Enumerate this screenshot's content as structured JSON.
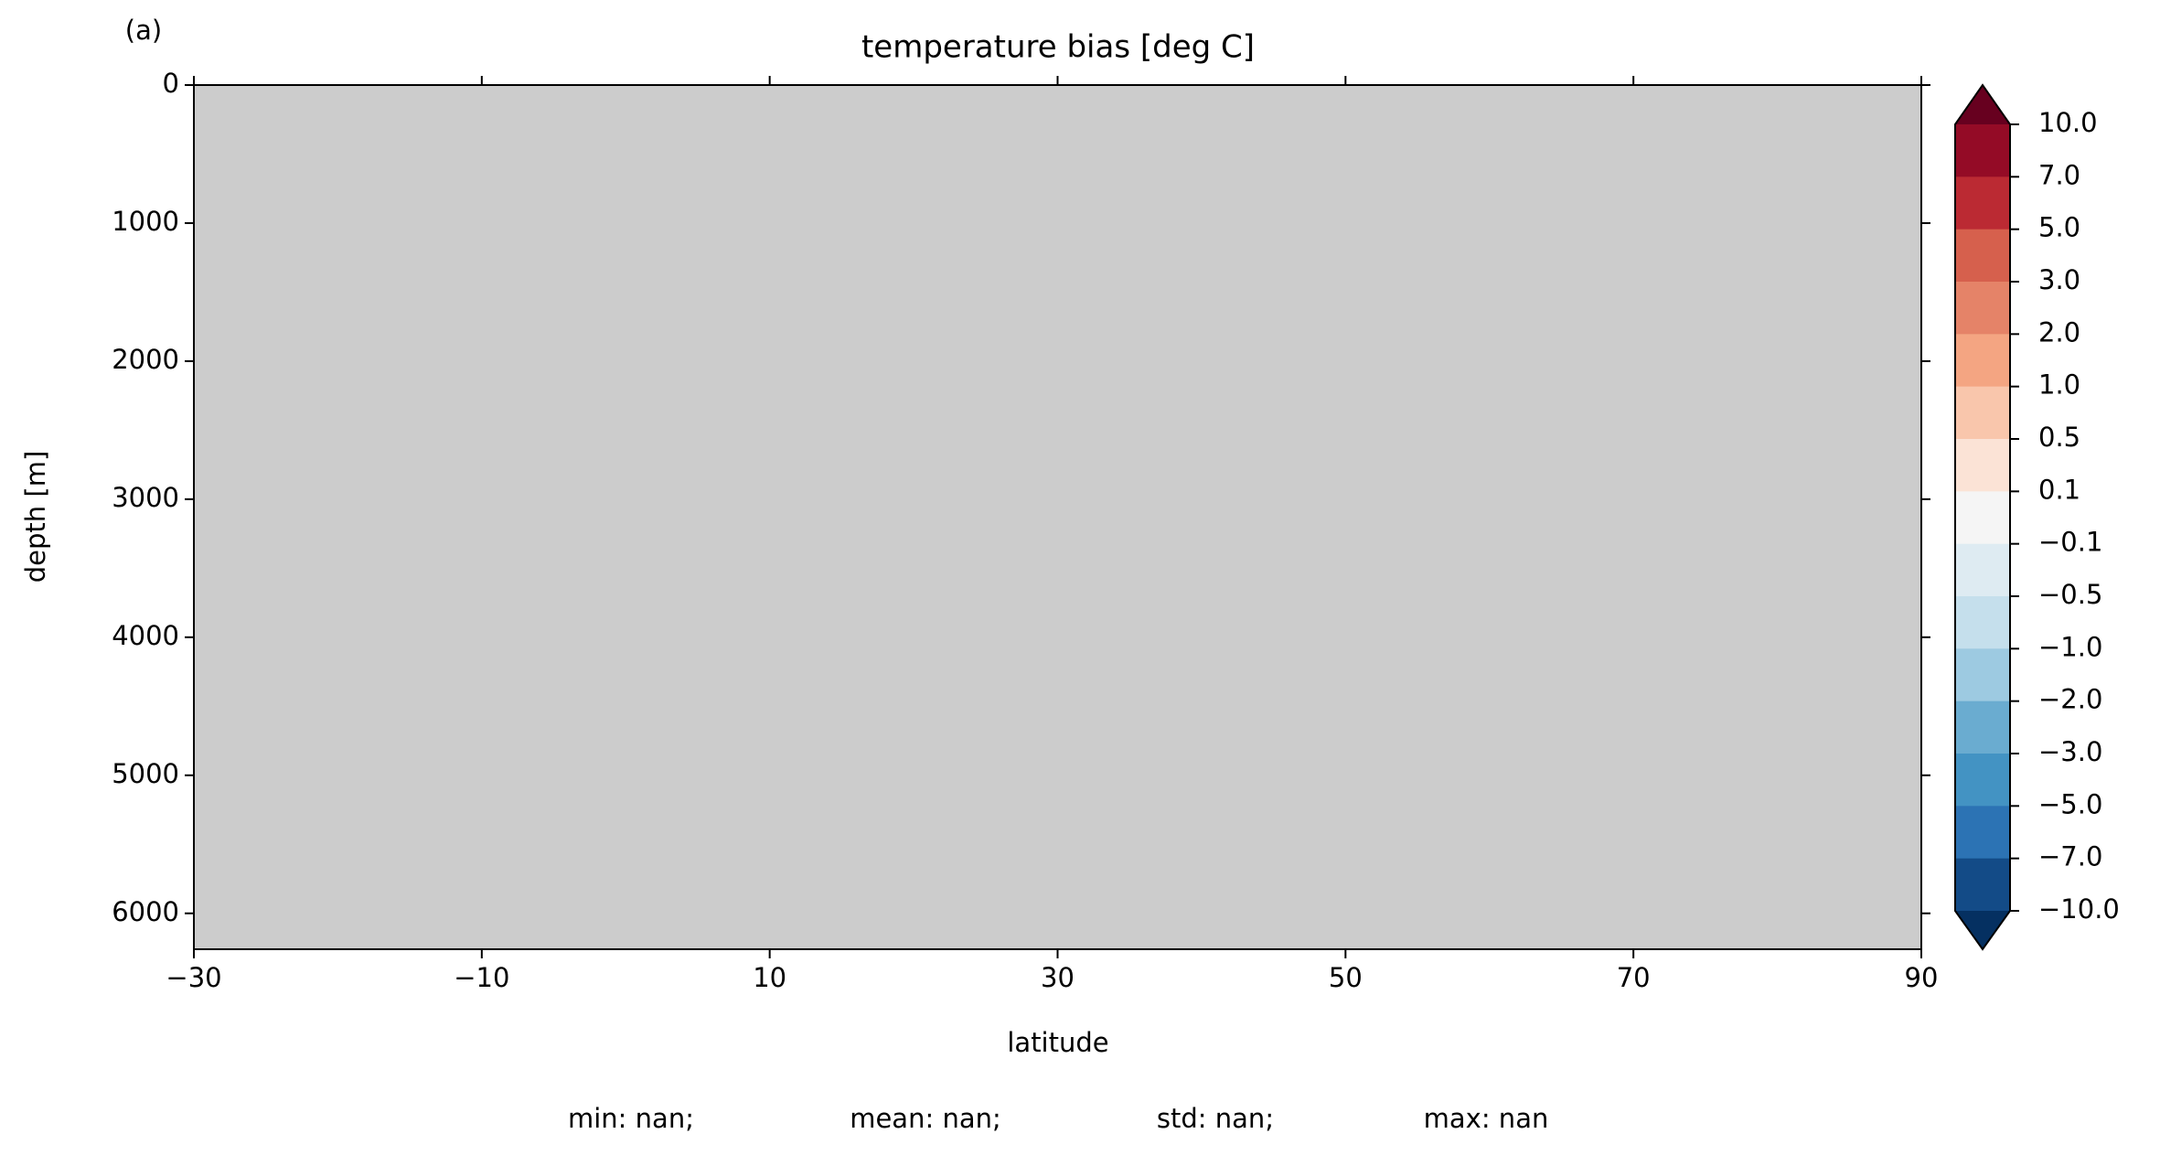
{
  "chart_data": {
    "type": "contour",
    "panel_label": "(a)",
    "title": "temperature bias [deg C]",
    "xlabel": "latitude",
    "ylabel": "depth [m]",
    "xlim": [
      -30,
      90
    ],
    "xticks": [
      {
        "value": -30,
        "label": "−30"
      },
      {
        "value": -10,
        "label": "−10"
      },
      10,
      30,
      50,
      70,
      90
    ],
    "ylim": [
      6260,
      0
    ],
    "yticks": [
      0,
      1000,
      2000,
      3000,
      4000,
      5000,
      6000
    ],
    "background_color": "#cccccc",
    "colorbar": {
      "extend": "both",
      "levels": [
        {
          "value": 10,
          "label": "10.0"
        },
        {
          "value": 7,
          "label": "7.0"
        },
        {
          "value": 5,
          "label": "5.0"
        },
        {
          "value": 3,
          "label": "3.0"
        },
        {
          "value": 2,
          "label": "2.0"
        },
        {
          "value": 1,
          "label": "1.0"
        },
        0.5,
        0.1,
        {
          "value": -0.1,
          "label": "−0.1"
        },
        {
          "value": -0.5,
          "label": "−0.5"
        },
        {
          "value": -1,
          "label": "−1.0"
        },
        {
          "value": -2,
          "label": "−2.0"
        },
        {
          "value": -3,
          "label": "−3.0"
        },
        {
          "value": -5,
          "label": "−5.0"
        },
        {
          "value": -7,
          "label": "−7.0"
        },
        {
          "value": -10,
          "label": "−10.0"
        }
      ],
      "colors": [
        "#67001f",
        "#940b26",
        "#bb2a33",
        "#d6604d",
        "#e58368",
        "#f4a582",
        "#f9c6ac",
        "#fbe3d6",
        "#f5f5f5",
        "#deebf2",
        "#c5dfec",
        "#9dcae1",
        "#6aacd0",
        "#4393c3",
        "#2c73b4",
        "#134b87",
        "#053061"
      ]
    },
    "stats": [
      "min: nan;",
      "mean: nan;",
      "std: nan;",
      "max: nan"
    ]
  }
}
